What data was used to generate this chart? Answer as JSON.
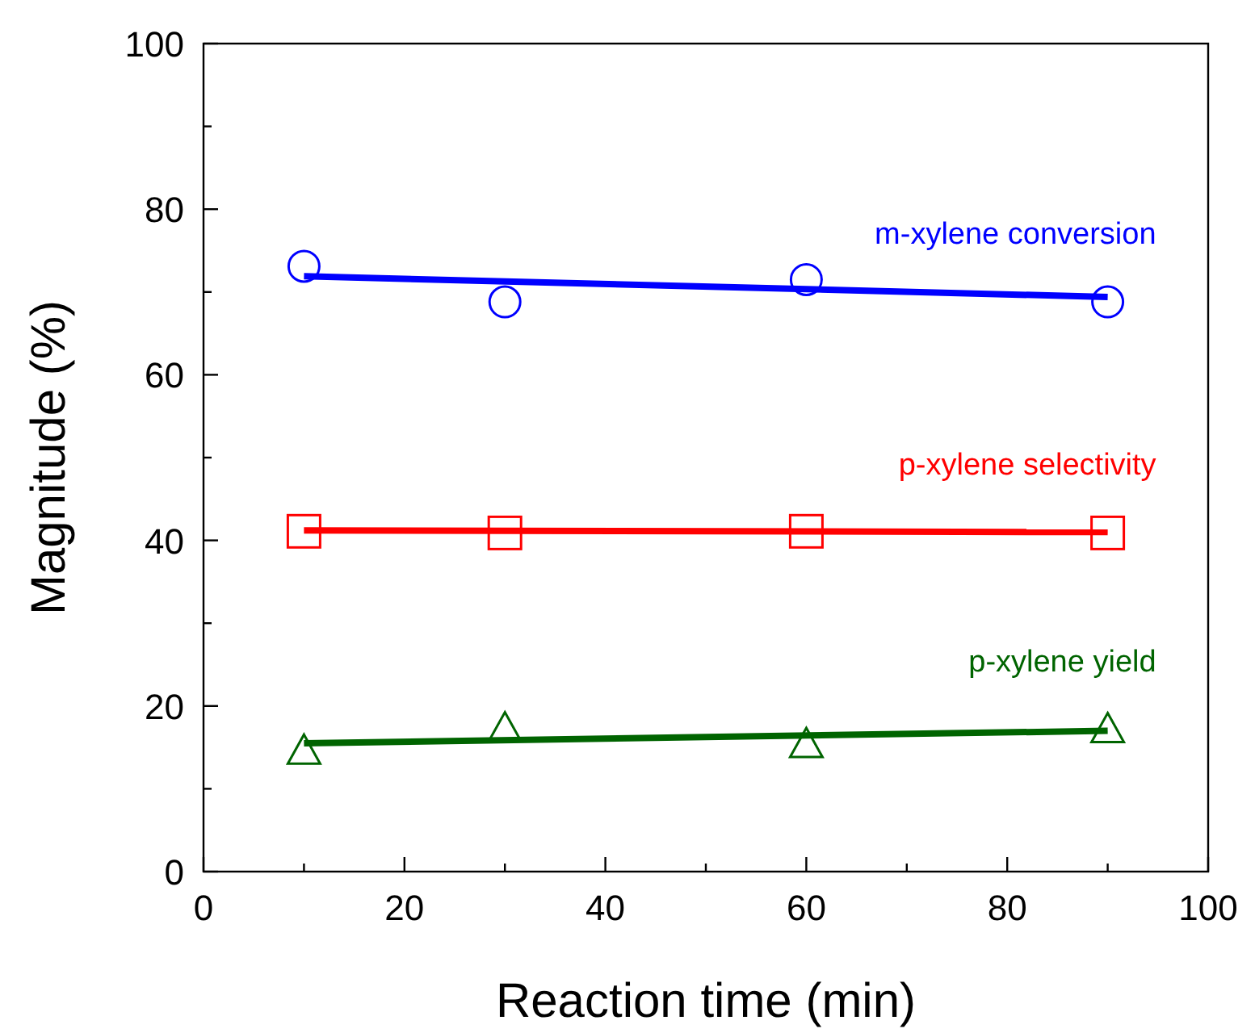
{
  "chart_data": {
    "type": "scatter",
    "xlabel": "Reaction time (min)",
    "ylabel": "Magnitude (%)",
    "xlim": [
      0,
      100
    ],
    "ylim": [
      0,
      100
    ],
    "xticks": [
      0,
      {
        "value": 10,
        "label": null
      },
      20,
      {
        "value": 30,
        "label": null
      },
      40,
      {
        "value": 50,
        "label": null
      },
      60,
      {
        "value": 70,
        "label": null
      },
      80,
      {
        "value": 90,
        "label": null
      },
      100
    ],
    "yticks": [
      0,
      {
        "value": 10,
        "label": null
      },
      20,
      {
        "value": 30,
        "label": null
      },
      40,
      {
        "value": 50,
        "label": null
      },
      60,
      {
        "value": 70,
        "label": null
      },
      80,
      {
        "value": 90,
        "label": null
      },
      100
    ],
    "grid": false,
    "series": [
      {
        "name": "m-xylene conversion",
        "color": "#0000ff",
        "marker": "circle",
        "x": [
          10,
          30,
          60,
          90
        ],
        "values": [
          73.1,
          68.8,
          71.5,
          68.8
        ]
      },
      {
        "type": "line",
        "color": "#0000ff",
        "marker": "none",
        "x": [
          10,
          90
        ],
        "values": [
          71.9,
          69.4
        ]
      },
      {
        "name": "p-xylene selectivity",
        "color": "#ff0000",
        "marker": "square",
        "x": [
          10,
          30,
          60,
          90
        ],
        "values": [
          41.1,
          40.9,
          41.1,
          40.9
        ]
      },
      {
        "type": "line",
        "color": "#ff0000",
        "marker": "none",
        "x": [
          10,
          90
        ],
        "values": [
          41.2,
          41.0
        ]
      },
      {
        "name": "p-xylene yield",
        "color": "#006400",
        "marker": "triangle",
        "x": [
          10,
          30,
          60,
          90
        ],
        "values": [
          14.6,
          17.3,
          15.4,
          17.2
        ]
      },
      {
        "type": "line",
        "color": "#006400",
        "marker": "none",
        "x": [
          10,
          90
        ],
        "values": [
          15.5,
          17.0
        ]
      }
    ]
  }
}
